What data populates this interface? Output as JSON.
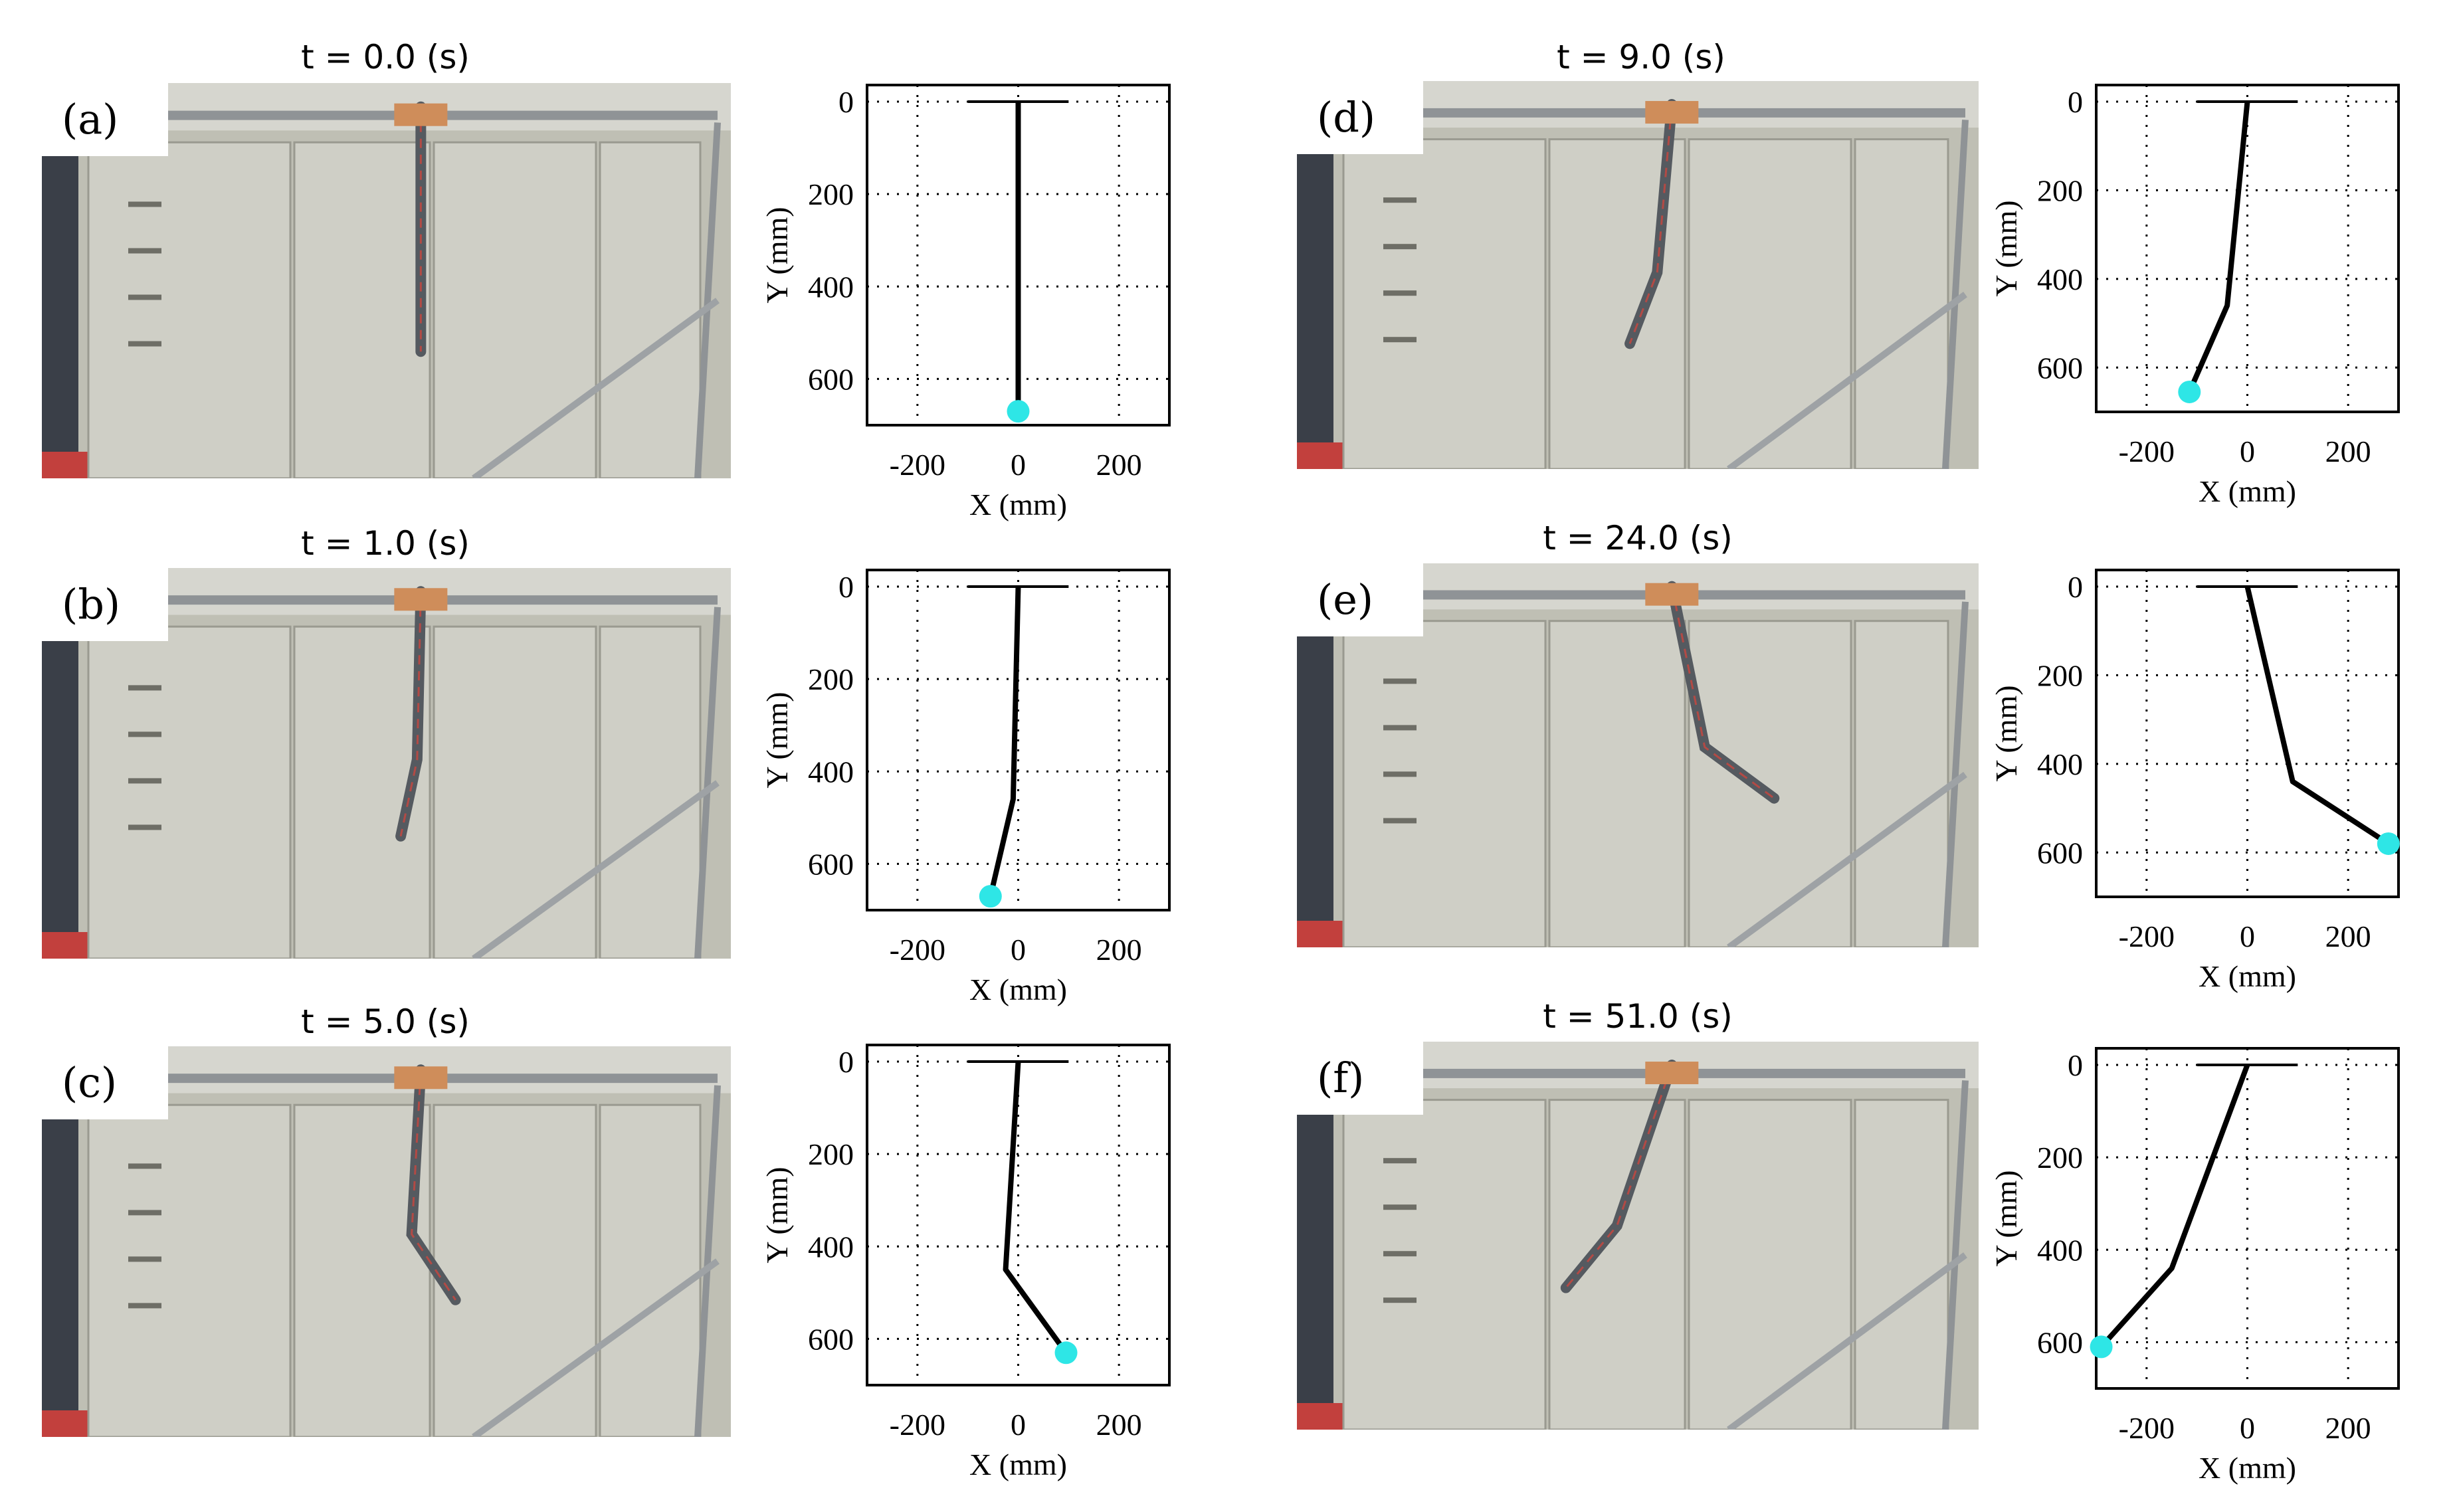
{
  "figure": {
    "axis": {
      "xlabel": "X (mm)",
      "ylabel": "Y (mm)",
      "x_ticks": [
        "-200",
        "0",
        "200"
      ],
      "y_ticks": [
        "0",
        "200",
        "400",
        "600"
      ],
      "xlim": [
        -300,
        300
      ],
      "ylim": [
        0,
        700
      ]
    },
    "panels": [
      {
        "label": "(a)",
        "title": "t = 0.0 (s)"
      },
      {
        "label": "(b)",
        "title": "t = 1.0 (s)"
      },
      {
        "label": "(c)",
        "title": "t = 5.0 (s)"
      },
      {
        "label": "(d)",
        "title": "t = 9.0 (s)"
      },
      {
        "label": "(e)",
        "title": "t = 24.0 (s)"
      },
      {
        "label": "(f)",
        "title": "t = 51.0 (s)"
      }
    ],
    "colors": {
      "link": "#000000",
      "end_effector": "#2ee6e6",
      "grid": "#000000"
    }
  },
  "chart_data": [
    {
      "type": "line",
      "panel": "(a)",
      "xlabel": "X (mm)",
      "ylabel": "Y (mm)",
      "xlim": [
        -300,
        300
      ],
      "ylim": [
        0,
        700
      ],
      "y_inverted": true,
      "grid": true,
      "base": {
        "x": [
          -100,
          100
        ],
        "y": [
          0,
          0
        ]
      },
      "joints": {
        "x": [
          0,
          0,
          0
        ],
        "y": [
          0,
          460,
          670
        ]
      },
      "end_effector": {
        "x": 0,
        "y": 670
      }
    },
    {
      "type": "line",
      "panel": "(b)",
      "xlabel": "X (mm)",
      "ylabel": "Y (mm)",
      "xlim": [
        -300,
        300
      ],
      "ylim": [
        0,
        700
      ],
      "y_inverted": true,
      "grid": true,
      "base": {
        "x": [
          -100,
          100
        ],
        "y": [
          0,
          0
        ]
      },
      "joints": {
        "x": [
          0,
          -10,
          -55
        ],
        "y": [
          0,
          460,
          670
        ]
      },
      "end_effector": {
        "x": -55,
        "y": 670
      }
    },
    {
      "type": "line",
      "panel": "(c)",
      "xlabel": "X (mm)",
      "ylabel": "Y (mm)",
      "xlim": [
        -300,
        300
      ],
      "ylim": [
        0,
        700
      ],
      "y_inverted": true,
      "grid": true,
      "base": {
        "x": [
          -100,
          100
        ],
        "y": [
          0,
          0
        ]
      },
      "joints": {
        "x": [
          0,
          -25,
          95
        ],
        "y": [
          0,
          450,
          630
        ]
      },
      "end_effector": {
        "x": 95,
        "y": 630
      }
    },
    {
      "type": "line",
      "panel": "(d)",
      "xlabel": "X (mm)",
      "ylabel": "Y (mm)",
      "xlim": [
        -300,
        300
      ],
      "ylim": [
        0,
        700
      ],
      "y_inverted": true,
      "grid": true,
      "base": {
        "x": [
          -100,
          100
        ],
        "y": [
          0,
          0
        ]
      },
      "joints": {
        "x": [
          0,
          -40,
          -115
        ],
        "y": [
          0,
          460,
          655
        ]
      },
      "end_effector": {
        "x": -115,
        "y": 655
      }
    },
    {
      "type": "line",
      "panel": "(e)",
      "xlabel": "X (mm)",
      "ylabel": "Y (mm)",
      "xlim": [
        -300,
        300
      ],
      "ylim": [
        0,
        700
      ],
      "y_inverted": true,
      "grid": true,
      "base": {
        "x": [
          -100,
          100
        ],
        "y": [
          0,
          0
        ]
      },
      "joints": {
        "x": [
          0,
          90,
          280
        ],
        "y": [
          0,
          440,
          580
        ]
      },
      "end_effector": {
        "x": 280,
        "y": 580
      }
    },
    {
      "type": "line",
      "panel": "(f)",
      "xlabel": "X (mm)",
      "ylabel": "Y (mm)",
      "xlim": [
        -300,
        300
      ],
      "ylim": [
        0,
        700
      ],
      "y_inverted": true,
      "grid": true,
      "base": {
        "x": [
          -100,
          100
        ],
        "y": [
          0,
          0
        ]
      },
      "joints": {
        "x": [
          0,
          -150,
          -290
        ],
        "y": [
          0,
          440,
          610
        ]
      },
      "end_effector": {
        "x": -290,
        "y": 610
      }
    }
  ]
}
